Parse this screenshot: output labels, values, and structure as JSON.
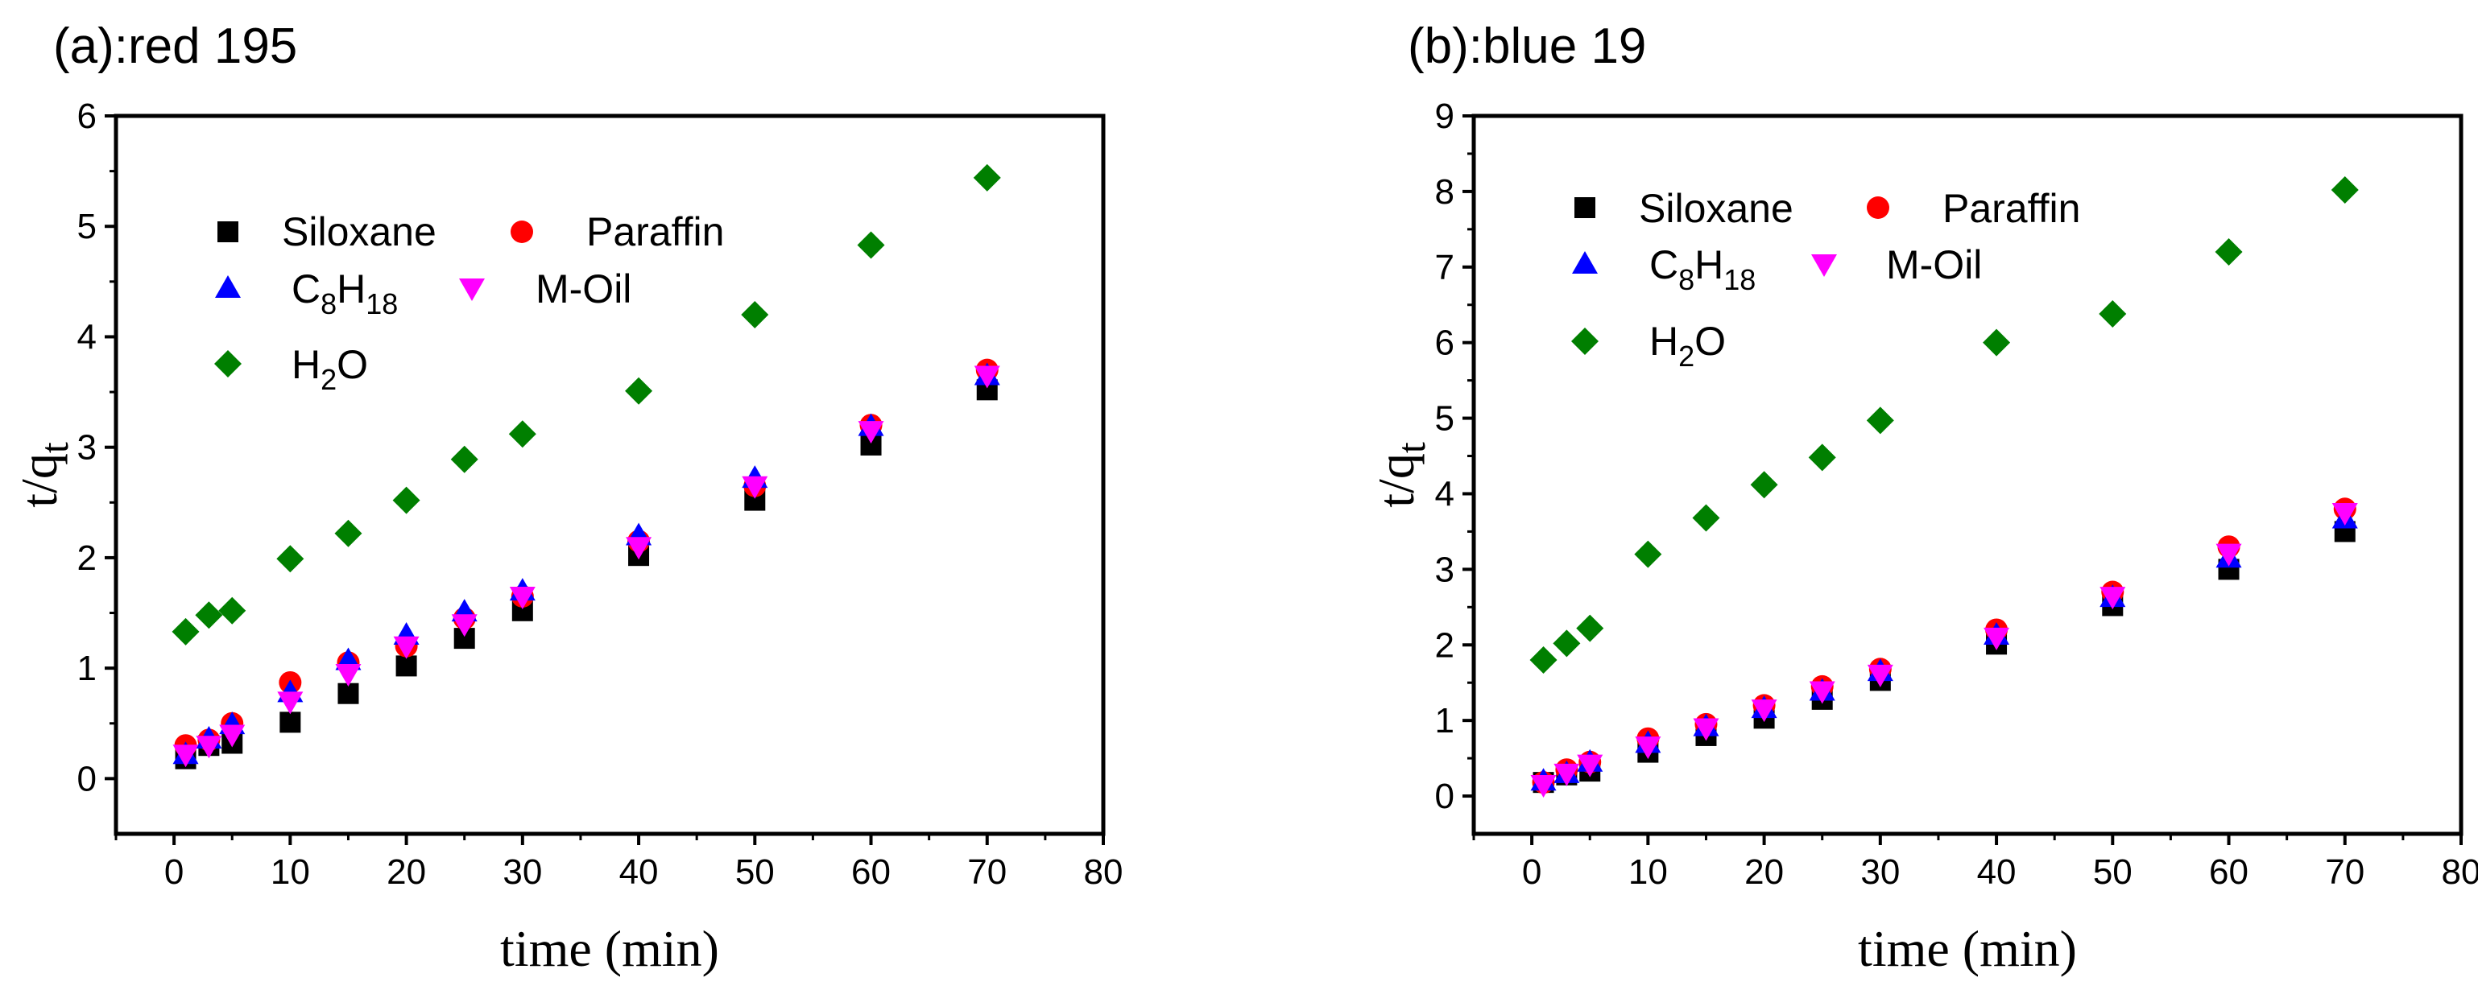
{
  "chart_data": [
    {
      "type": "scatter",
      "title": "(a):red 195",
      "xlabel": "time (min)",
      "ylabel": "t/qt",
      "xlim": [
        -5,
        80
      ],
      "ylim": [
        -0.5,
        6
      ],
      "xticks": [
        "0",
        "10",
        "20",
        "30",
        "40",
        "50",
        "60",
        "70",
        "80"
      ],
      "yticks": [
        "0",
        "1",
        "2",
        "3",
        "4",
        "5",
        "6"
      ],
      "x": [
        1,
        3,
        5,
        10,
        15,
        20,
        25,
        30,
        40,
        50,
        60,
        70
      ],
      "series": [
        {
          "name": "Siloxane",
          "color": "#000000",
          "marker": "square",
          "values": [
            0.18,
            0.3,
            0.32,
            0.51,
            0.77,
            1.02,
            1.27,
            1.52,
            2.02,
            2.52,
            3.02,
            3.52
          ]
        },
        {
          "name": "Paraffin",
          "color": "#ff0000",
          "marker": "circle",
          "values": [
            0.3,
            0.35,
            0.5,
            0.87,
            1.05,
            1.2,
            1.45,
            1.65,
            2.15,
            2.65,
            3.2,
            3.7
          ]
        },
        {
          "name": "C8H18",
          "color": "#0000ff",
          "marker": "triangle-up",
          "values": [
            0.22,
            0.36,
            0.49,
            0.78,
            1.07,
            1.3,
            1.51,
            1.7,
            2.2,
            2.72,
            3.19,
            3.65
          ]
        },
        {
          "name": "M-Oil",
          "color": "#ff00ff",
          "marker": "triangle-down",
          "values": [
            0.22,
            0.3,
            0.4,
            0.7,
            0.95,
            1.2,
            1.4,
            1.65,
            2.1,
            2.65,
            3.15,
            3.65
          ]
        },
        {
          "name": "H2O",
          "color": "#007f00",
          "marker": "diamond",
          "values": [
            1.33,
            1.48,
            1.52,
            1.99,
            2.22,
            2.52,
            2.89,
            3.12,
            3.51,
            4.2,
            4.83,
            5.44
          ]
        }
      ],
      "legend": {
        "siloxane": "Siloxane",
        "paraffin": "Paraffin",
        "c8h18": {
          "base": "C",
          "sub1": "8",
          "mid": "H",
          "sub2": "18"
        },
        "moil": "M-Oil",
        "h2o": {
          "base": "H",
          "sub": "2",
          "tail": "O"
        }
      }
    },
    {
      "type": "scatter",
      "title": "(b):blue 19",
      "xlabel": "time (min)",
      "ylabel": "t/qt",
      "xlim": [
        -5,
        80
      ],
      "ylim": [
        -0.5,
        9
      ],
      "xticks": [
        "0",
        "10",
        "20",
        "30",
        "40",
        "50",
        "60",
        "70",
        "80"
      ],
      "yticks": [
        "0",
        "1",
        "2",
        "3",
        "4",
        "5",
        "6",
        "7",
        "8",
        "9"
      ],
      "x": [
        1,
        3,
        5,
        10,
        15,
        20,
        25,
        30,
        40,
        50,
        60,
        70
      ],
      "series": [
        {
          "name": "Siloxane",
          "color": "#000000",
          "marker": "square",
          "values": [
            0.18,
            0.28,
            0.33,
            0.58,
            0.8,
            1.03,
            1.28,
            1.53,
            2.01,
            2.52,
            3.0,
            3.5
          ]
        },
        {
          "name": "Paraffin",
          "color": "#ff0000",
          "marker": "circle",
          "values": [
            0.18,
            0.35,
            0.45,
            0.76,
            0.95,
            1.2,
            1.45,
            1.68,
            2.2,
            2.7,
            3.3,
            3.8
          ]
        },
        {
          "name": "C8H18",
          "color": "#0000ff",
          "marker": "triangle-up",
          "values": [
            0.2,
            0.3,
            0.45,
            0.7,
            0.92,
            1.16,
            1.39,
            1.65,
            2.13,
            2.63,
            3.15,
            3.67
          ]
        },
        {
          "name": "M-Oil",
          "color": "#ff00ff",
          "marker": "triangle-down",
          "values": [
            0.15,
            0.3,
            0.42,
            0.66,
            0.9,
            1.15,
            1.39,
            1.61,
            2.1,
            2.64,
            3.21,
            3.75
          ]
        },
        {
          "name": "H2O",
          "color": "#007f00",
          "marker": "diamond",
          "values": [
            1.8,
            2.02,
            2.22,
            3.2,
            3.68,
            4.12,
            4.48,
            4.97,
            6.0,
            6.38,
            7.2,
            8.02
          ]
        }
      ],
      "legend": {
        "siloxane": "Siloxane",
        "paraffin": "Paraffin",
        "c8h18": {
          "base": "C",
          "sub1": "8",
          "mid": "H",
          "sub2": "18"
        },
        "moil": "M-Oil",
        "h2o": {
          "base": "H",
          "sub": "2",
          "tail": "O"
        }
      }
    }
  ]
}
